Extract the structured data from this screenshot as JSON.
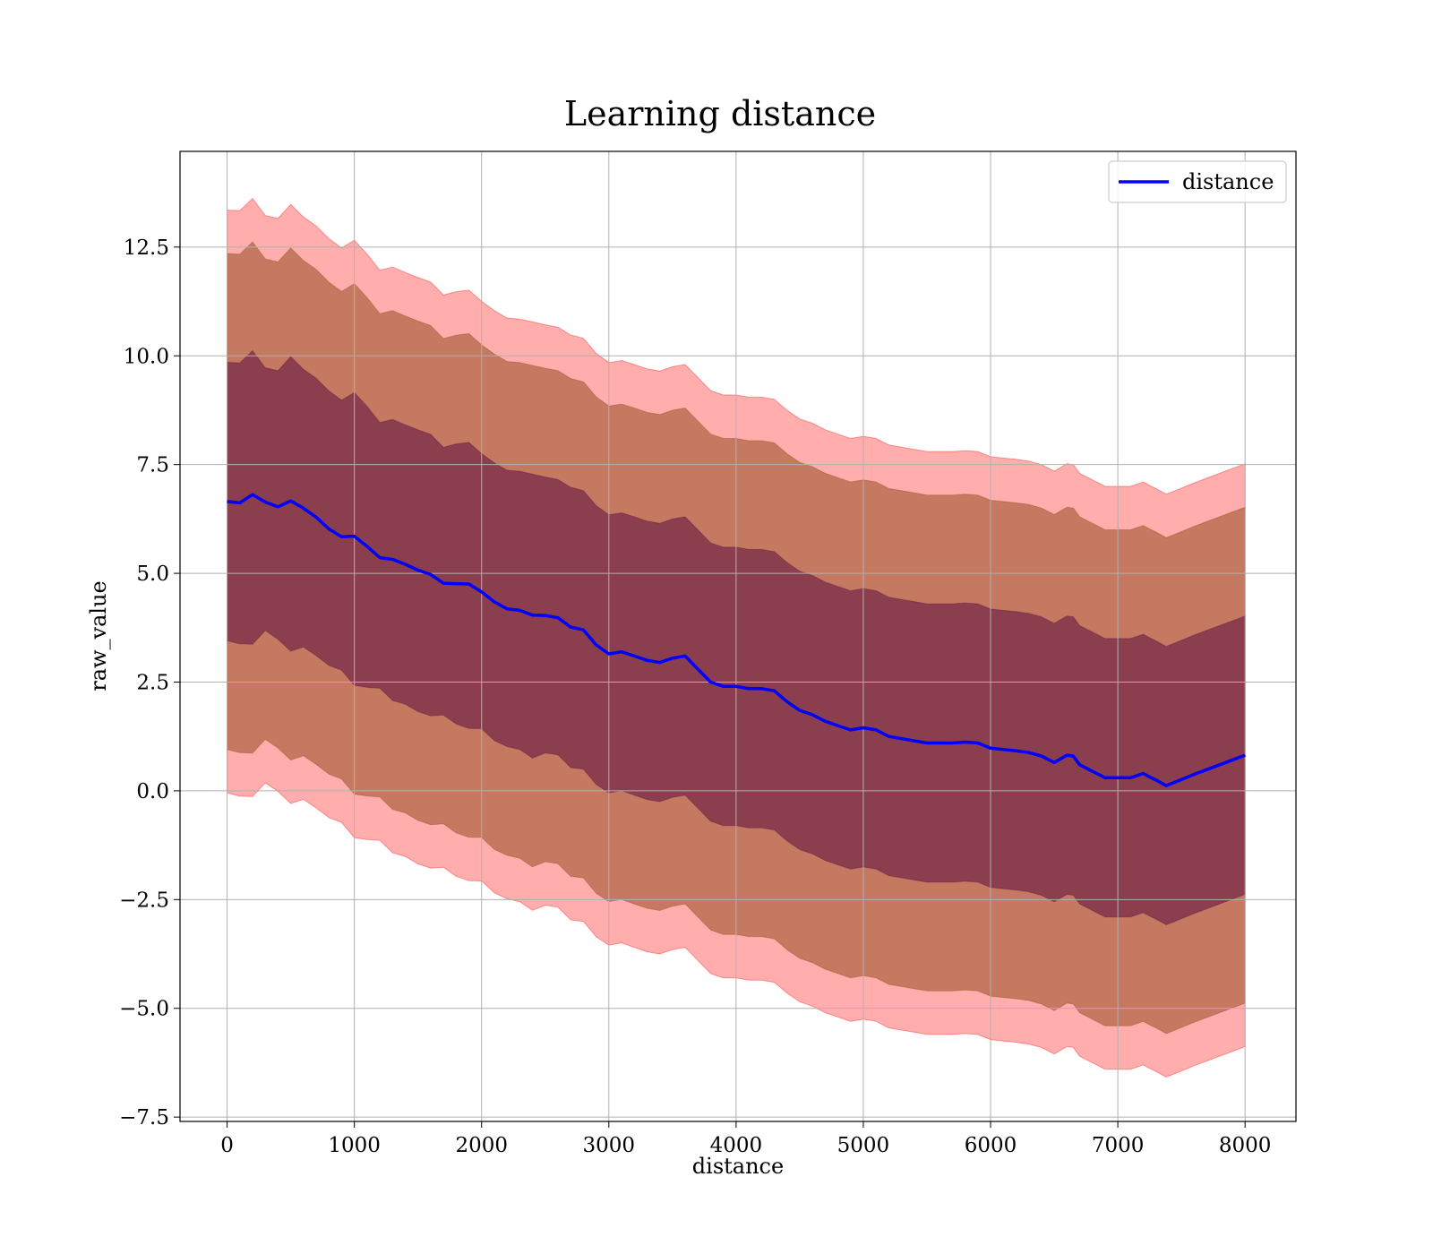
{
  "chart_data": {
    "type": "line",
    "title": "Learning distance",
    "xlabel": "distance",
    "ylabel": "raw_value",
    "xlim": [
      -370,
      8400
    ],
    "ylim": [
      -7.6,
      14.7
    ],
    "x_ticks": [
      0,
      1000,
      2000,
      3000,
      4000,
      5000,
      6000,
      7000,
      8000
    ],
    "x_tick_labels": [
      "0",
      "1000",
      "2000",
      "3000",
      "4000",
      "5000",
      "6000",
      "7000",
      "8000"
    ],
    "y_ticks": [
      -7.5,
      -5.0,
      -2.5,
      0.0,
      2.5,
      5.0,
      7.5,
      10.0,
      12.5
    ],
    "y_tick_labels": [
      "−7.5",
      "−5.0",
      "−2.5",
      "0.0",
      "2.5",
      "5.0",
      "7.5",
      "10.0",
      "12.5"
    ],
    "grid": true,
    "legend": {
      "position": "top-right",
      "entries": [
        "distance"
      ]
    },
    "colors": {
      "line": "#0000ff",
      "band_outer": "#ff0000",
      "band_mid": "#8b4513",
      "band_inner": "#5b0f3f"
    },
    "band_offsets": [
      3.2,
      5.7,
      6.7
    ],
    "band_opacity": [
      0.32,
      0.5,
      0.55
    ],
    "x": [
      0,
      100,
      200,
      300,
      400,
      500,
      600,
      700,
      800,
      900,
      1000,
      1100,
      1200,
      1300,
      1400,
      1500,
      1600,
      1700,
      1800,
      1900,
      2000,
      2100,
      2200,
      2300,
      2400,
      2500,
      2600,
      2700,
      2800,
      2900,
      3000,
      3100,
      3200,
      3300,
      3400,
      3500,
      3600,
      3700,
      3800,
      3900,
      4000,
      4100,
      4200,
      4300,
      4400,
      4500,
      4600,
      4700,
      4800,
      4900,
      5000,
      5100,
      5200,
      5300,
      5400,
      5500,
      5600,
      5700,
      5800,
      5900,
      6000,
      6100,
      6200,
      6300,
      6400,
      6500,
      6600,
      6650,
      6700,
      6800,
      6900,
      7000,
      7100,
      7200,
      7250,
      7300,
      7380,
      7450,
      7600,
      7800,
      8000
    ],
    "series": [
      {
        "name": "distance",
        "values": [
          6.65,
          6.6,
          6.7,
          6.75,
          6.6,
          6.55,
          6.5,
          6.3,
          6.05,
          5.9,
          5.75,
          5.6,
          5.45,
          5.3,
          5.2,
          5.05,
          4.95,
          4.85,
          4.75,
          4.7,
          4.6,
          4.35,
          4.2,
          4.15,
          4.0,
          4.05,
          4.0,
          3.75,
          3.7,
          3.35,
          3.15,
          3.2,
          3.1,
          3.0,
          2.95,
          3.05,
          3.1,
          2.8,
          2.5,
          2.4,
          2.4,
          2.35,
          2.35,
          2.3,
          2.05,
          1.85,
          1.75,
          1.6,
          1.5,
          1.4,
          1.45,
          1.4,
          1.25,
          1.2,
          1.15,
          1.1,
          1.1,
          1.1,
          1.12,
          1.1,
          0.98,
          0.95,
          0.92,
          0.88,
          0.8,
          0.65,
          0.82,
          0.8,
          0.6,
          0.45,
          0.3,
          0.3,
          0.3,
          0.4,
          0.32,
          0.25,
          0.12,
          0.2,
          0.38,
          0.6,
          0.82
        ]
      }
    ]
  }
}
